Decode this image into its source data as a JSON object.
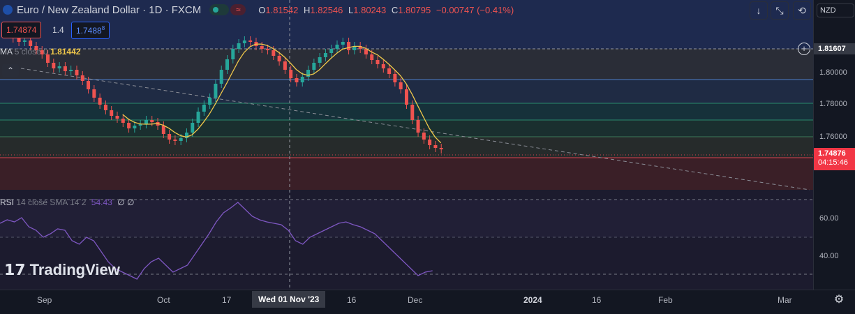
{
  "header": {
    "symbol": "Euro / New Zealand Dollar · 1D · FXCM",
    "open_label": "O",
    "open": "1.81542",
    "high_label": "H",
    "high": "1.82546",
    "low_label": "L",
    "low": "1.80243",
    "close_label": "C",
    "close": "1.80795",
    "change": "−0.00747 (−0.41%)"
  },
  "quote": {
    "bid": "1.74874",
    "spread": "1.4",
    "ask": "1.7488",
    "ask_sup": "8"
  },
  "ma_legend": {
    "name": "MA",
    "params": "5 close 0",
    "value": "1.81442"
  },
  "rsi_legend": {
    "name": "RSI",
    "params": "14 close SMA 14 2",
    "value": "54.43",
    "extra1": "∅",
    "extra2": "∅"
  },
  "price_axis": {
    "currency": "NZD",
    "ticks": [
      "1.80000",
      "1.78000",
      "1.76000"
    ],
    "crosshair_price": "1.81607",
    "last_price": "1.74876",
    "countdown": "04:15:46",
    "rsi_ticks": [
      "60.00",
      "40.00"
    ]
  },
  "date_axis": {
    "labels": [
      "Sep",
      "Oct",
      "17",
      "16",
      "Dec",
      "2024",
      "16",
      "Feb",
      "Mar"
    ],
    "crosshair_date": "Wed 01 Nov '23"
  },
  "watermark": "TradingView",
  "colors": {
    "up": "#26a69a",
    "down": "#ef5350",
    "ma": "#f0c84a",
    "rsi": "#7e57c2",
    "last_price": "#f23645"
  },
  "chart_data": {
    "type": "candlestick",
    "ma_value": 1.81442,
    "rsi_value": 54.43,
    "last_close": 1.74876,
    "ylim": [
      1.735,
      1.83
    ]
  }
}
